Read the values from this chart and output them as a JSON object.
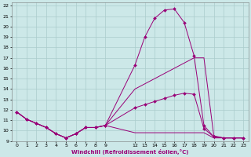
{
  "background_color": "#cce8e8",
  "grid_color": "#aacccc",
  "line_color": "#990077",
  "xlabel": "Windchill (Refroidissement éolien,°C)",
  "xlim": [
    -0.5,
    23.5
  ],
  "ylim": [
    9.0,
    22.3
  ],
  "xticks": [
    0,
    1,
    2,
    3,
    4,
    5,
    6,
    7,
    8,
    9,
    12,
    13,
    14,
    15,
    16,
    17,
    18,
    19,
    20,
    21,
    22,
    23
  ],
  "yticks": [
    9,
    10,
    11,
    12,
    13,
    14,
    15,
    16,
    17,
    18,
    19,
    20,
    21,
    22
  ],
  "curve1_x": [
    0,
    1,
    2,
    3,
    4,
    5,
    6,
    7,
    8,
    9,
    12,
    13,
    14,
    15,
    16,
    17,
    18,
    19,
    20,
    21,
    22,
    23
  ],
  "curve1_y": [
    11.8,
    11.1,
    10.7,
    10.3,
    9.7,
    9.3,
    9.7,
    10.3,
    10.3,
    10.5,
    16.3,
    19.0,
    20.8,
    21.6,
    21.7,
    20.4,
    17.2,
    10.5,
    9.4,
    9.3,
    9.3,
    9.3
  ],
  "curve2_x": [
    0,
    1,
    2,
    3,
    4,
    5,
    6,
    7,
    8,
    9,
    12,
    13,
    14,
    15,
    16,
    17,
    18,
    19,
    20,
    21,
    22,
    23
  ],
  "curve2_y": [
    11.8,
    11.1,
    10.7,
    10.3,
    9.7,
    9.3,
    9.7,
    10.3,
    10.3,
    10.5,
    14.0,
    14.5,
    15.0,
    15.5,
    16.0,
    16.5,
    17.0,
    17.0,
    9.5,
    9.3,
    9.3,
    9.3
  ],
  "curve3_x": [
    0,
    1,
    2,
    3,
    4,
    5,
    6,
    7,
    8,
    9,
    12,
    13,
    14,
    15,
    16,
    17,
    18,
    19,
    20,
    21,
    22,
    23
  ],
  "curve3_y": [
    11.8,
    11.1,
    10.7,
    10.3,
    9.7,
    9.3,
    9.7,
    10.3,
    10.3,
    10.5,
    12.2,
    12.5,
    12.8,
    13.1,
    13.4,
    13.6,
    13.5,
    10.2,
    9.4,
    9.3,
    9.3,
    9.3
  ],
  "curve4_x": [
    0,
    1,
    2,
    3,
    4,
    5,
    6,
    7,
    8,
    9,
    12,
    13,
    14,
    15,
    16,
    17,
    18,
    19,
    20,
    21,
    22,
    23
  ],
  "curve4_y": [
    11.8,
    11.1,
    10.7,
    10.3,
    9.7,
    9.3,
    9.7,
    10.3,
    10.3,
    10.5,
    9.8,
    9.8,
    9.8,
    9.8,
    9.8,
    9.8,
    9.8,
    9.8,
    9.3,
    9.3,
    9.3,
    9.3
  ]
}
